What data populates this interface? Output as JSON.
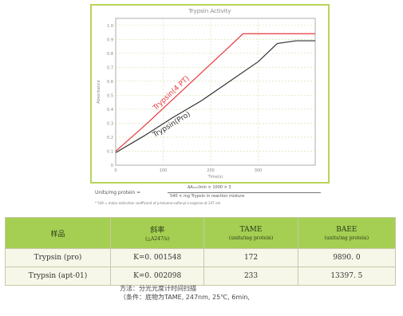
{
  "chart_data": {
    "type": "line",
    "title": "Trypsin Activity",
    "xlabel": "Time(s)",
    "ylabel": "Absorbance",
    "xlim": [
      0,
      420
    ],
    "ylim": [
      0,
      1.05
    ],
    "x_ticks": [
      "0",
      "100",
      "200",
      "300"
    ],
    "y_ticks": [
      "0",
      "0.1",
      "0.2",
      "0.3",
      "0.4",
      "0.5",
      "0.6",
      "0.7",
      "0.8",
      "0.9",
      "1.0"
    ],
    "grid": true,
    "series": [
      {
        "name": "Trypsin(4 PT)",
        "color": "#e8383d",
        "x": [
          0,
          60,
          120,
          180,
          240,
          268,
          300,
          360,
          420
        ],
        "y": [
          0.1,
          0.28,
          0.47,
          0.66,
          0.85,
          0.94,
          0.94,
          0.94,
          0.94
        ]
      },
      {
        "name": "Trypsin(Pro)",
        "color": "#333333",
        "x": [
          0,
          60,
          120,
          180,
          240,
          300,
          340,
          380,
          420
        ],
        "y": [
          0.09,
          0.21,
          0.34,
          0.46,
          0.6,
          0.74,
          0.87,
          0.89,
          0.89
        ]
      }
    ]
  },
  "formula": {
    "left": "Units/mg protein =",
    "numerator": "ΔA₂₄₇/min × 1000 × 3",
    "denominator": "540 × mg Trypsin in reaction mixture",
    "note": "* 540 = molar extinction coefficient of p-toluene-sulfonyl-L-arginine at 247 nm"
  },
  "table": {
    "headers": [
      {
        "main": "样品",
        "sub": ""
      },
      {
        "main": "斜率",
        "sub": "(△A247/s)"
      },
      {
        "main": "TAME",
        "sub": "(units/mg protein)"
      },
      {
        "main": "BAEE",
        "sub": "(units/mg protein)"
      }
    ],
    "rows": [
      {
        "sample": "Trypsin (pro)",
        "slope": "K=0. 001548",
        "tame": "172",
        "baee": "9890. 0"
      },
      {
        "sample": "Trypsin (apt-01)",
        "slope": "K=0. 002098",
        "tame": "233",
        "baee": "13397. 5"
      }
    ]
  },
  "method": {
    "line1": "方法：分光光度计时间扫描",
    "line2": "（条件：底物为TAME, 247nm, 25℃, 6min,"
  }
}
